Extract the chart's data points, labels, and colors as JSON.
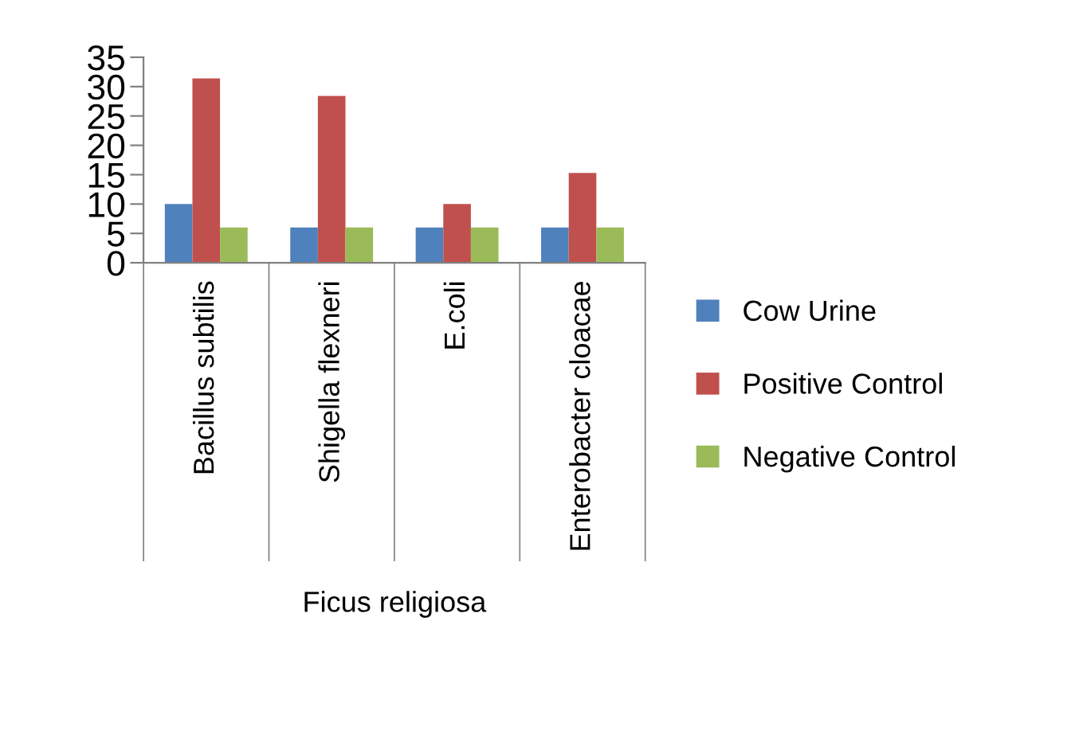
{
  "chart_data": {
    "type": "bar",
    "xlabel": "Ficus religiosa",
    "categories": [
      "Bacillus subtilis",
      "Shigella flexneri",
      "E.coli",
      "Enterobacter cloacae"
    ],
    "series": [
      {
        "name": "Cow Urine",
        "color": "#4f81bd",
        "values": [
          10,
          6,
          6,
          6
        ]
      },
      {
        "name": "Positive Control",
        "color": "#c0504d",
        "values": [
          31.4,
          28.4,
          10,
          15.3
        ]
      },
      {
        "name": "Negative Control",
        "color": "#9bbb59",
        "values": [
          6,
          6,
          6,
          6
        ]
      }
    ],
    "ylim": [
      0,
      35
    ],
    "yticks": [
      0,
      5,
      10,
      15,
      20,
      25,
      30,
      35
    ],
    "grid": false,
    "legend": "right"
  }
}
